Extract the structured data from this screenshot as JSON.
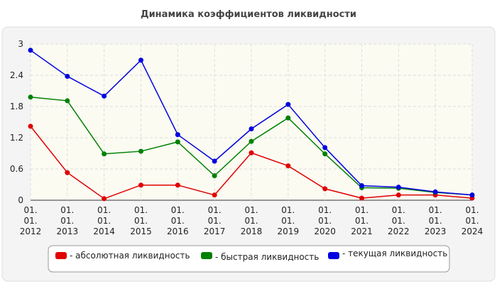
{
  "chart_data": {
    "type": "line",
    "title": "Динамика коэффициентов ликвидности",
    "categories": [
      "01. 01. 2012",
      "01. 01. 2013",
      "01. 01. 2014",
      "01. 01. 2015",
      "01. 01. 2016",
      "01. 01. 2017",
      "01. 01. 2018",
      "01. 01. 2019",
      "01. 01. 2020",
      "01. 01. 2021",
      "01. 01. 2022",
      "01. 01. 2023",
      "01. 01. 2024"
    ],
    "series": [
      {
        "name": "- абсолютная ликвидность",
        "color": "#e00000",
        "values": [
          1.42,
          0.53,
          0.03,
          0.29,
          0.29,
          0.1,
          0.91,
          0.66,
          0.22,
          0.04,
          0.1,
          0.1,
          0.04
        ]
      },
      {
        "name": "- быстрая ликвидность",
        "color": "#008000",
        "values": [
          1.98,
          1.91,
          0.89,
          0.94,
          1.12,
          0.47,
          1.13,
          1.58,
          0.89,
          0.24,
          0.23,
          0.15,
          0.1
        ]
      },
      {
        "name": "- текущая ликвидность",
        "color": "#0000e0",
        "values": [
          2.88,
          2.38,
          2.0,
          2.69,
          1.26,
          0.75,
          1.37,
          1.84,
          1.01,
          0.28,
          0.25,
          0.16,
          0.1
        ]
      }
    ],
    "ylim": [
      0,
      3
    ],
    "yticks": [
      0,
      0.6,
      1.2,
      1.8,
      2.4,
      3
    ],
    "grid": true
  }
}
